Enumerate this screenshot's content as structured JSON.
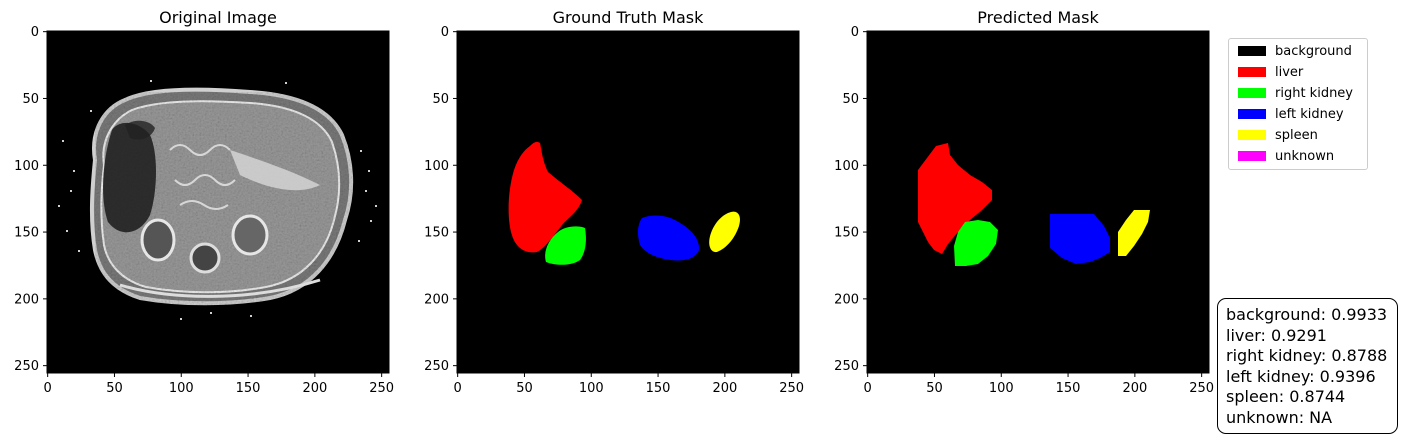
{
  "panels": [
    {
      "title": "Original Image"
    },
    {
      "title": "Ground Truth Mask"
    },
    {
      "title": "Predicted Mask"
    }
  ],
  "axes": {
    "x_ticks": [
      "0",
      "50",
      "100",
      "150",
      "200",
      "250"
    ],
    "y_ticks": [
      "0",
      "50",
      "100",
      "150",
      "200",
      "250"
    ],
    "image_size": 256
  },
  "legend": [
    {
      "label": "background",
      "color": "#000000"
    },
    {
      "label": "liver",
      "color": "#ff0000"
    },
    {
      "label": "right kidney",
      "color": "#00ff00"
    },
    {
      "label": "left kidney",
      "color": "#0000ff"
    },
    {
      "label": "spleen",
      "color": "#ffff00"
    },
    {
      "label": "unknown",
      "color": "#ff00ff"
    }
  ],
  "dice_scores": [
    "background: 0.9933",
    "liver: 0.9291",
    "right kidney: 0.8788",
    "left kidney: 0.9396",
    "spleen: 0.8744",
    "unknown: NA"
  ]
}
